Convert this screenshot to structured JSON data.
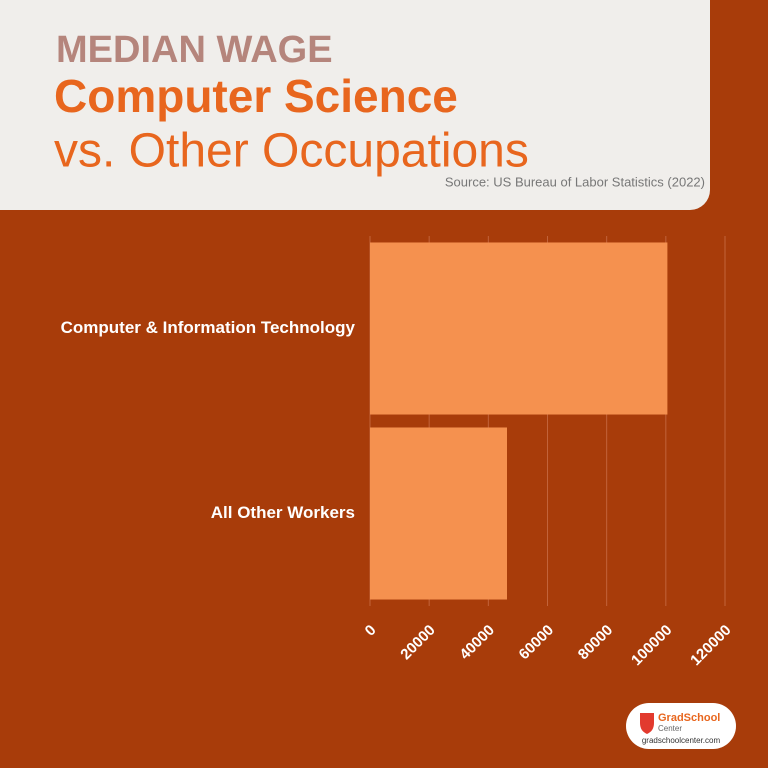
{
  "chart_data": {
    "type": "barh",
    "title": "MEDIAN WAGE",
    "subtitle": [
      "Computer Science",
      "vs. Other Occupations"
    ],
    "source": "Source: US Bureau of Labor Statistics (2022)",
    "categories": [
      "Computer & Information Technology",
      "All Other Workers"
    ],
    "values": [
      100530,
      46310
    ],
    "color": "#f5914f",
    "xlim": [
      0,
      120000
    ],
    "xticks": [
      0,
      20000,
      40000,
      60000,
      80000,
      100000,
      120000
    ],
    "grid": true
  },
  "logo": {
    "name": "GradSchool",
    "tagline": "Center",
    "url": "gradschoolcenter.com"
  }
}
